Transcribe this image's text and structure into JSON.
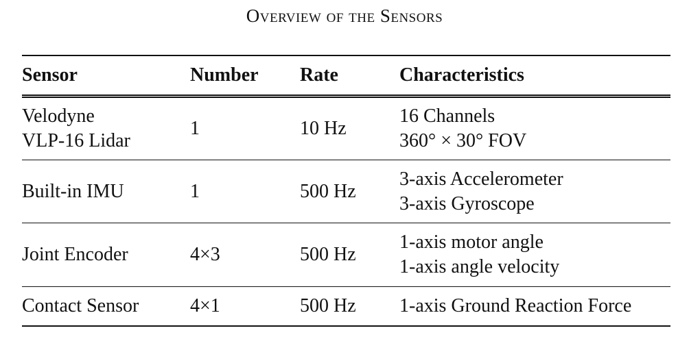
{
  "caption": "Overview of the Sensors",
  "table": {
    "headers": [
      "Sensor",
      "Number",
      "Rate",
      "Characteristics"
    ],
    "rows": [
      {
        "sensor": [
          "Velodyne",
          "VLP-16 Lidar"
        ],
        "number": "1",
        "rate": "10 Hz",
        "characteristics": [
          "16 Channels",
          "360° × 30° FOV"
        ]
      },
      {
        "sensor": [
          "Built-in IMU"
        ],
        "number": "1",
        "rate": "500 Hz",
        "characteristics": [
          "3-axis Accelerometer",
          "3-axis Gyroscope"
        ]
      },
      {
        "sensor": [
          "Joint Encoder"
        ],
        "number": "4×3",
        "rate": "500 Hz",
        "characteristics": [
          "1-axis motor angle",
          "1-axis angle velocity"
        ]
      },
      {
        "sensor": [
          "Contact Sensor"
        ],
        "number": "4×1",
        "rate": "500 Hz",
        "characteristics": [
          "1-axis Ground Reaction Force"
        ]
      }
    ]
  }
}
